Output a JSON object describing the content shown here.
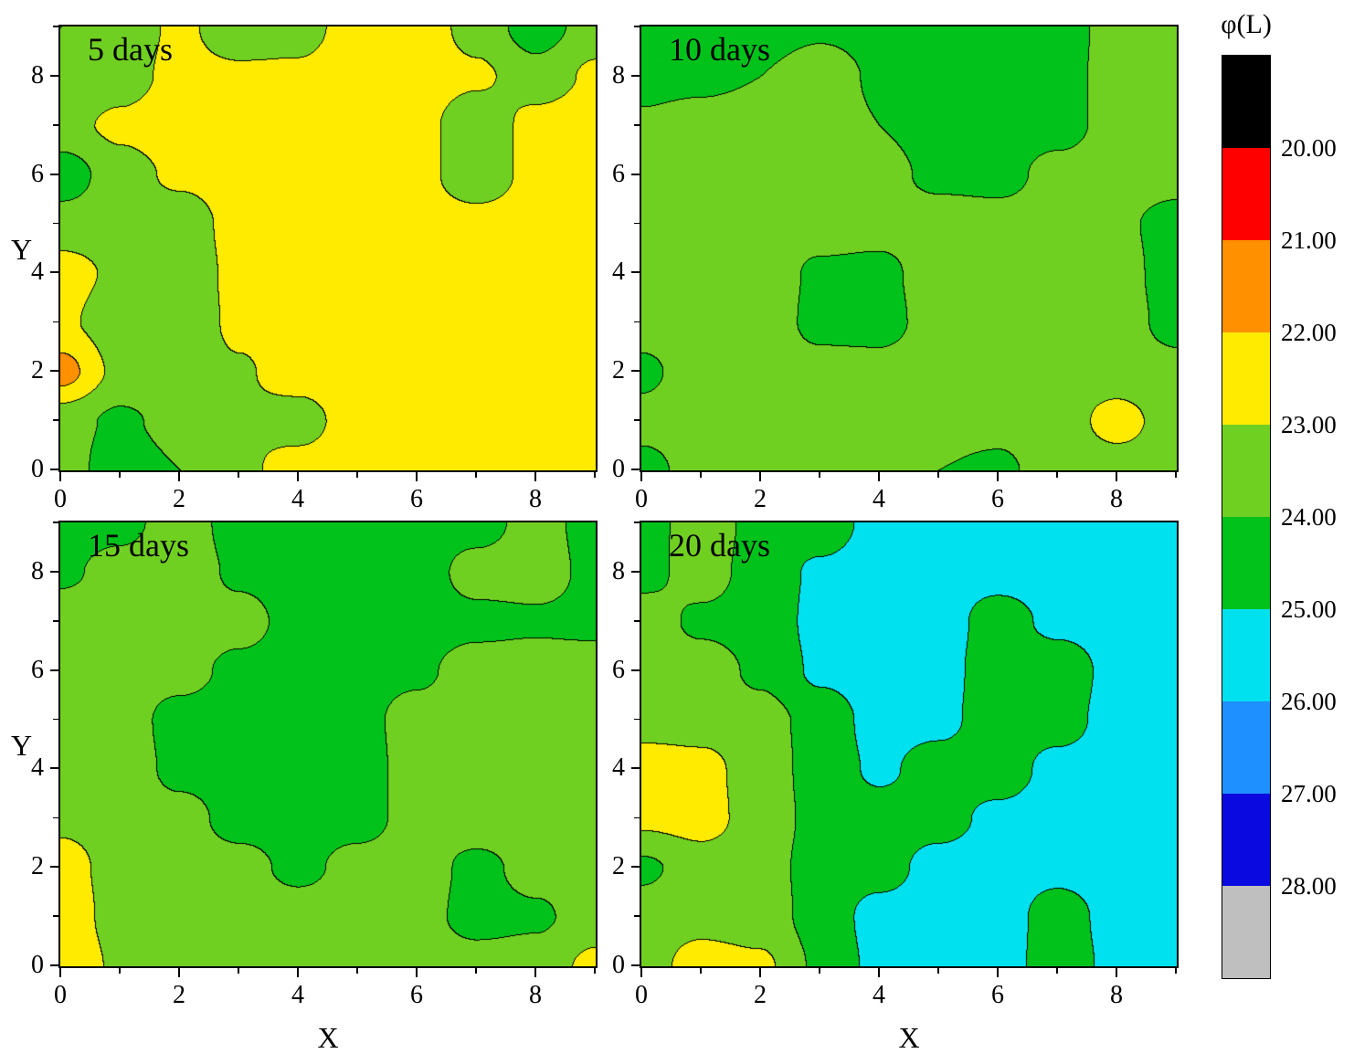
{
  "figure": {
    "background": "#FFFFFF",
    "x_axis_label": "X",
    "y_axis_label": "Y"
  },
  "axes": {
    "x_range": [
      0,
      9
    ],
    "y_range": [
      0,
      9
    ],
    "major_ticks": [
      0,
      2,
      4,
      6,
      8
    ],
    "minor_ticks": [
      1,
      3,
      5,
      7,
      9
    ],
    "tick_labels": [
      "0",
      "2",
      "4",
      "6",
      "8"
    ]
  },
  "colorbar": {
    "title": "φ(L)",
    "boundary_labels": [
      "20.00",
      "21.00",
      "22.00",
      "23.00",
      "24.00",
      "25.00",
      "26.00",
      "27.00",
      "28.00"
    ]
  },
  "chart_data": {
    "type": "heatmap",
    "subtype": "filled-contour",
    "variable": "φ(L)",
    "note": "Each panel: values given on a 10x10 grid; rows run y=0 (bottom) to y=9 (top), columns x=0..9. Band between level L and L+1 is drawn with band_colors[L-19].",
    "x_range": [
      0,
      9
    ],
    "y_range": [
      0,
      9
    ],
    "levels": [
      20,
      21,
      22,
      23,
      24,
      25,
      26,
      27,
      28
    ],
    "band_colors": [
      "#000000",
      "#FF0000",
      "#FF9000",
      "#FFEB00",
      "#70D021",
      "#00C21B",
      "#00E1F0",
      "#1E90FF",
      "#0A0AE0",
      "#BFBFBF"
    ],
    "panels": [
      {
        "label": "5 days",
        "values": [
          [
            23.5,
            24.6,
            24.0,
            23.2,
            22.6,
            22.4,
            22.4,
            22.4,
            22.4,
            22.4
          ],
          [
            23.6,
            24.2,
            23.6,
            23.1,
            23.4,
            22.5,
            22.4,
            22.4,
            22.4,
            22.4
          ],
          [
            21.6,
            23.3,
            23.4,
            23.1,
            22.6,
            22.4,
            22.4,
            22.4,
            22.4,
            22.4
          ],
          [
            22.8,
            23.6,
            23.6,
            22.8,
            22.5,
            22.4,
            22.4,
            22.4,
            22.4,
            22.4
          ],
          [
            22.6,
            23.2,
            23.7,
            22.7,
            22.4,
            22.4,
            22.4,
            22.4,
            22.4,
            22.4
          ],
          [
            23.5,
            23.5,
            23.6,
            22.6,
            22.4,
            22.4,
            22.4,
            22.5,
            22.4,
            22.4
          ],
          [
            24.6,
            23.4,
            22.8,
            22.5,
            22.4,
            22.4,
            22.6,
            23.8,
            22.6,
            22.4
          ],
          [
            23.3,
            22.8,
            22.5,
            22.4,
            22.4,
            22.4,
            22.6,
            23.8,
            22.6,
            22.4
          ],
          [
            23.8,
            23.4,
            22.7,
            22.8,
            22.8,
            22.4,
            22.4,
            22.8,
            23.6,
            22.8
          ],
          [
            24.0,
            23.6,
            22.8,
            23.6,
            23.4,
            22.5,
            22.4,
            23.4,
            24.5,
            23.5
          ]
        ]
      },
      {
        "label": "10 days",
        "values": [
          [
            24.3,
            23.6,
            23.4,
            23.4,
            23.4,
            24.0,
            24.2,
            23.5,
            23.4,
            23.4
          ],
          [
            23.7,
            23.5,
            23.4,
            23.4,
            23.4,
            23.6,
            23.7,
            23.4,
            22.7,
            23.4
          ],
          [
            24.2,
            23.5,
            23.4,
            23.6,
            23.6,
            23.4,
            23.4,
            23.4,
            23.4,
            23.6
          ],
          [
            23.6,
            23.4,
            23.4,
            24.3,
            24.4,
            23.5,
            23.4,
            23.4,
            23.5,
            24.4
          ],
          [
            23.4,
            23.4,
            23.4,
            24.2,
            24.3,
            23.4,
            23.4,
            23.4,
            23.6,
            24.5
          ],
          [
            23.4,
            23.4,
            23.4,
            23.5,
            23.6,
            23.4,
            23.5,
            23.4,
            23.8,
            24.4
          ],
          [
            23.4,
            23.4,
            23.4,
            23.4,
            23.6,
            24.3,
            24.4,
            23.6,
            23.5,
            23.6
          ],
          [
            23.8,
            23.5,
            23.4,
            23.4,
            24.0,
            24.5,
            24.6,
            24.4,
            23.6,
            23.4
          ],
          [
            24.4,
            24.3,
            24.0,
            23.4,
            24.2,
            24.6,
            24.6,
            24.5,
            23.5,
            23.4
          ],
          [
            24.6,
            24.6,
            24.5,
            24.2,
            24.4,
            24.7,
            24.7,
            24.5,
            23.6,
            23.4
          ]
        ]
      },
      {
        "label": "15 days",
        "values": [
          [
            22.2,
            23.2,
            23.4,
            23.4,
            23.4,
            23.4,
            23.4,
            23.5,
            23.4,
            22.8
          ],
          [
            22.4,
            23.4,
            23.4,
            23.4,
            23.4,
            23.4,
            23.6,
            24.4,
            24.2,
            23.4
          ],
          [
            22.6,
            23.4,
            23.5,
            23.6,
            24.3,
            23.6,
            23.5,
            24.3,
            23.6,
            23.4
          ],
          [
            23.2,
            23.4,
            23.6,
            24.4,
            24.5,
            24.4,
            23.6,
            23.4,
            23.4,
            23.4
          ],
          [
            23.4,
            23.4,
            24.3,
            24.5,
            24.5,
            24.4,
            23.6,
            23.4,
            23.4,
            23.4
          ],
          [
            23.4,
            23.5,
            24.4,
            24.5,
            24.5,
            24.3,
            23.6,
            23.4,
            23.4,
            23.4
          ],
          [
            23.4,
            23.4,
            23.6,
            24.3,
            24.5,
            24.4,
            24.2,
            23.5,
            23.4,
            23.4
          ],
          [
            23.4,
            23.4,
            23.4,
            23.6,
            24.4,
            24.5,
            24.5,
            24.3,
            24.2,
            24.3
          ],
          [
            24.2,
            23.6,
            23.4,
            24.2,
            24.5,
            24.6,
            24.5,
            23.6,
            23.5,
            24.3
          ],
          [
            24.5,
            24.3,
            23.5,
            24.4,
            24.6,
            24.6,
            24.6,
            24.4,
            23.6,
            24.4
          ]
        ]
      },
      {
        "label": "20 days",
        "values": [
          [
            23.4,
            22.6,
            22.8,
            24.2,
            25.3,
            25.5,
            25.5,
            24.4,
            25.3,
            25.5
          ],
          [
            23.5,
            23.3,
            23.5,
            24.4,
            25.4,
            25.5,
            25.5,
            24.5,
            25.4,
            25.5
          ],
          [
            24.2,
            23.5,
            23.6,
            24.4,
            24.6,
            25.4,
            25.5,
            25.3,
            25.5,
            25.5
          ],
          [
            22.8,
            22.6,
            23.5,
            24.3,
            24.5,
            24.6,
            25.3,
            25.5,
            25.5,
            25.5
          ],
          [
            22.5,
            22.7,
            23.5,
            24.4,
            25.2,
            24.5,
            24.4,
            25.4,
            25.5,
            25.5
          ],
          [
            23.4,
            23.4,
            23.6,
            24.4,
            25.4,
            25.3,
            24.4,
            24.5,
            25.5,
            25.5
          ],
          [
            23.5,
            23.5,
            24.2,
            25.2,
            25.5,
            25.4,
            24.4,
            24.3,
            25.4,
            25.5
          ],
          [
            23.5,
            24.2,
            24.4,
            25.3,
            25.5,
            25.5,
            24.5,
            25.3,
            25.5,
            25.5
          ],
          [
            24.3,
            23.6,
            24.4,
            25.2,
            25.5,
            25.5,
            25.4,
            25.5,
            25.5,
            25.5
          ],
          [
            24.4,
            23.5,
            24.3,
            24.4,
            25.4,
            25.5,
            25.5,
            25.5,
            25.5,
            25.5
          ]
        ]
      }
    ]
  }
}
